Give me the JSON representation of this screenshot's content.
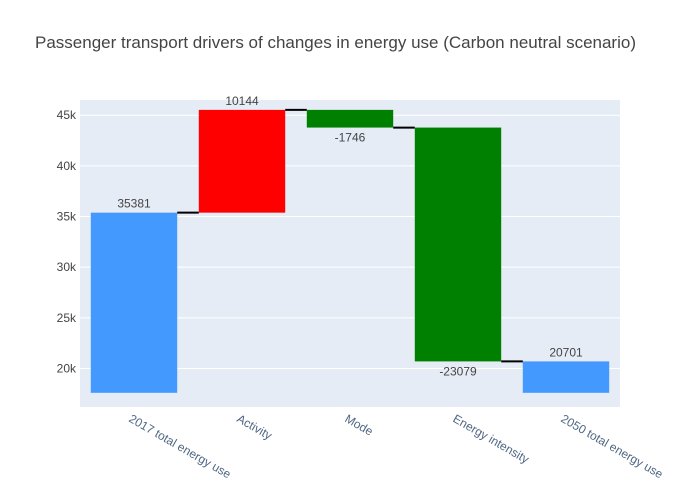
{
  "chart_data": {
    "type": "waterfall",
    "title": "Passenger transport drivers of changes in energy use (Carbon neutral scenario)",
    "xlabel": "",
    "ylabel": "",
    "categories": [
      "2017 total energy use",
      "Activity",
      "Mode",
      "Energy intensity",
      "2050 total energy use"
    ],
    "measures": [
      "absolute",
      "relative",
      "relative",
      "relative",
      "total"
    ],
    "values": [
      35381,
      10144,
      -1746,
      -23079,
      20701
    ],
    "labels": [
      "35381",
      "10144",
      "-1746",
      "-23079",
      "20701"
    ],
    "ylim": [
      16200,
      46500
    ],
    "bar_bottom": 17600,
    "y_ticks": [
      20000,
      25000,
      30000,
      35000,
      40000,
      45000
    ],
    "y_tick_labels": [
      "20k",
      "25k",
      "30k",
      "35k",
      "40k",
      "45k"
    ],
    "grid": true,
    "legend": "none",
    "colors": {
      "total": "#4499ff",
      "increase": "#ff0000",
      "decrease": "#008000",
      "connector": "#000000",
      "plot_bg": "#e5ecf6",
      "grid": "#ffffff"
    }
  }
}
